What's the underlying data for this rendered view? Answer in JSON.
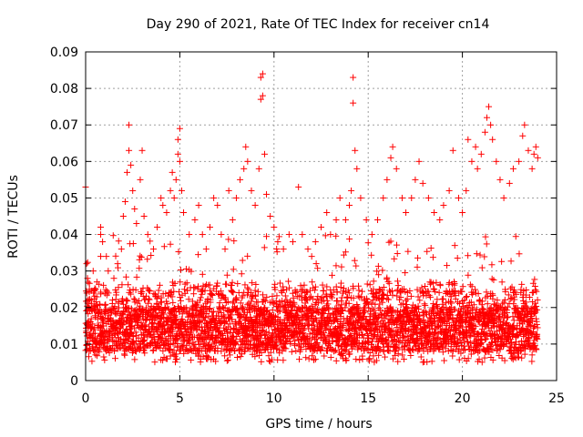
{
  "chart_data": {
    "type": "scatter",
    "title": "Day 290 of 2021, Rate Of TEC Index for receiver cn14",
    "xlabel": "GPS time / hours",
    "ylabel": "ROTI / TECUs",
    "xlim": [
      0,
      25
    ],
    "ylim": [
      0,
      0.09
    ],
    "xticks": [
      "0",
      "5",
      "10",
      "15",
      "20",
      "25"
    ],
    "yticks": [
      "0",
      "0.01",
      "0.02",
      "0.03",
      "0.04",
      "0.05",
      "0.06",
      "0.07",
      "0.08",
      "0.09"
    ],
    "grid": true,
    "marker": "+",
    "color": "#ff0000",
    "series": [
      {
        "values_note": "",
        "points": [
          [
            0.0,
            0.053
          ],
          [
            0.05,
            0.032
          ],
          [
            0.1,
            0.028
          ],
          [
            0.2,
            0.025
          ],
          [
            0.3,
            0.022
          ],
          [
            0.4,
            0.03
          ],
          [
            0.6,
            0.027
          ],
          [
            0.8,
            0.034
          ],
          [
            0.8,
            0.042
          ],
          [
            0.8,
            0.04
          ],
          [
            0.9,
            0.038
          ],
          [
            1.1,
            0.034
          ],
          [
            1.2,
            0.03
          ],
          [
            1.5,
            0.028
          ],
          [
            1.7,
            0.032
          ],
          [
            1.9,
            0.036
          ],
          [
            2.0,
            0.045
          ],
          [
            2.1,
            0.049
          ],
          [
            2.2,
            0.057
          ],
          [
            2.3,
            0.063
          ],
          [
            2.3,
            0.07
          ],
          [
            2.4,
            0.059
          ],
          [
            2.5,
            0.052
          ],
          [
            2.6,
            0.047
          ],
          [
            2.7,
            0.043
          ],
          [
            2.9,
            0.055
          ],
          [
            3.0,
            0.063
          ],
          [
            3.1,
            0.045
          ],
          [
            3.3,
            0.04
          ],
          [
            3.6,
            0.036
          ],
          [
            3.8,
            0.042
          ],
          [
            4.0,
            0.05
          ],
          [
            4.1,
            0.048
          ],
          [
            4.3,
            0.046
          ],
          [
            4.5,
            0.052
          ],
          [
            4.6,
            0.057
          ],
          [
            4.7,
            0.05
          ],
          [
            4.8,
            0.055
          ],
          [
            4.9,
            0.062
          ],
          [
            4.9,
            0.066
          ],
          [
            5.0,
            0.069
          ],
          [
            5.0,
            0.06
          ],
          [
            5.1,
            0.052
          ],
          [
            5.2,
            0.046
          ],
          [
            5.5,
            0.04
          ],
          [
            5.8,
            0.044
          ],
          [
            6.0,
            0.048
          ],
          [
            6.2,
            0.04
          ],
          [
            6.4,
            0.036
          ],
          [
            6.6,
            0.042
          ],
          [
            6.8,
            0.05
          ],
          [
            7.0,
            0.048
          ],
          [
            7.2,
            0.04
          ],
          [
            7.4,
            0.036
          ],
          [
            7.6,
            0.052
          ],
          [
            7.8,
            0.044
          ],
          [
            8.0,
            0.05
          ],
          [
            8.2,
            0.055
          ],
          [
            8.4,
            0.058
          ],
          [
            8.5,
            0.064
          ],
          [
            8.6,
            0.06
          ],
          [
            8.8,
            0.052
          ],
          [
            9.0,
            0.048
          ],
          [
            9.2,
            0.058
          ],
          [
            9.3,
            0.077
          ],
          [
            9.3,
            0.083
          ],
          [
            9.4,
            0.084
          ],
          [
            9.4,
            0.078
          ],
          [
            9.5,
            0.062
          ],
          [
            9.6,
            0.051
          ],
          [
            9.8,
            0.045
          ],
          [
            10.0,
            0.042
          ],
          [
            10.2,
            0.038
          ],
          [
            10.5,
            0.036
          ],
          [
            10.8,
            0.04
          ],
          [
            11.0,
            0.038
          ],
          [
            11.3,
            0.053
          ],
          [
            11.5,
            0.04
          ],
          [
            11.8,
            0.036
          ],
          [
            12.0,
            0.034
          ],
          [
            12.2,
            0.038
          ],
          [
            12.5,
            0.042
          ],
          [
            12.8,
            0.046
          ],
          [
            13.0,
            0.04
          ],
          [
            13.3,
            0.044
          ],
          [
            13.5,
            0.05
          ],
          [
            13.8,
            0.044
          ],
          [
            14.0,
            0.048
          ],
          [
            14.1,
            0.052
          ],
          [
            14.2,
            0.076
          ],
          [
            14.2,
            0.083
          ],
          [
            14.3,
            0.063
          ],
          [
            14.4,
            0.058
          ],
          [
            14.6,
            0.05
          ],
          [
            14.9,
            0.044
          ],
          [
            15.2,
            0.04
          ],
          [
            15.5,
            0.044
          ],
          [
            15.8,
            0.05
          ],
          [
            16.0,
            0.055
          ],
          [
            16.2,
            0.061
          ],
          [
            16.3,
            0.064
          ],
          [
            16.5,
            0.058
          ],
          [
            16.8,
            0.05
          ],
          [
            17.0,
            0.046
          ],
          [
            17.3,
            0.05
          ],
          [
            17.5,
            0.055
          ],
          [
            17.7,
            0.06
          ],
          [
            17.9,
            0.054
          ],
          [
            18.2,
            0.05
          ],
          [
            18.5,
            0.046
          ],
          [
            18.8,
            0.044
          ],
          [
            19.0,
            0.048
          ],
          [
            19.3,
            0.052
          ],
          [
            19.5,
            0.063
          ],
          [
            19.8,
            0.05
          ],
          [
            20.0,
            0.046
          ],
          [
            20.2,
            0.052
          ],
          [
            20.3,
            0.066
          ],
          [
            20.5,
            0.06
          ],
          [
            20.7,
            0.064
          ],
          [
            20.8,
            0.058
          ],
          [
            21.0,
            0.062
          ],
          [
            21.2,
            0.068
          ],
          [
            21.3,
            0.072
          ],
          [
            21.4,
            0.075
          ],
          [
            21.5,
            0.07
          ],
          [
            21.6,
            0.066
          ],
          [
            21.8,
            0.06
          ],
          [
            22.0,
            0.055
          ],
          [
            22.2,
            0.05
          ],
          [
            22.5,
            0.054
          ],
          [
            22.7,
            0.058
          ],
          [
            23.0,
            0.06
          ],
          [
            23.2,
            0.067
          ],
          [
            23.3,
            0.07
          ],
          [
            23.5,
            0.063
          ],
          [
            23.7,
            0.058
          ],
          [
            23.8,
            0.062
          ],
          [
            23.9,
            0.064
          ],
          [
            24.0,
            0.061
          ]
        ]
      }
    ]
  }
}
